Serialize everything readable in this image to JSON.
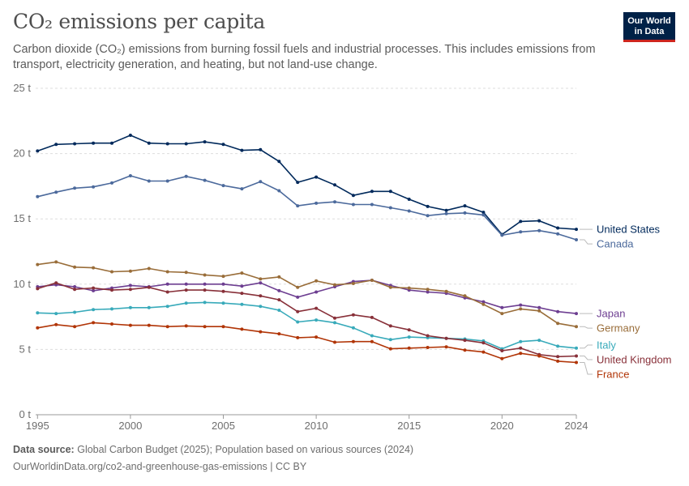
{
  "header": {
    "title": "CO₂ emissions per capita",
    "subtitle": "Carbon dioxide (CO₂) emissions from burning fossil fuels and industrial processes. This includes emissions from transport, electricity generation, and heating, but not land-use change.",
    "logo_line1": "Our World",
    "logo_line2": "in Data"
  },
  "footer": {
    "source_label": "Data source:",
    "source_text": "Global Carbon Budget (2025); Population based on various sources (2024)",
    "link_text": "OurWorldinData.org/co2-and-greenhouse-gas-emissions | CC BY"
  },
  "colors": {
    "gridline": "#dddddd",
    "axis": "#999999",
    "leader": "#bbbbbb"
  },
  "chart_data": {
    "type": "line",
    "title": "CO₂ emissions per capita",
    "xlim": [
      1994.9,
      2024
    ],
    "ylim": [
      0,
      25
    ],
    "grid": true,
    "legend": "right-end labels",
    "y_ticks": [
      {
        "value": 0,
        "label": "0 t"
      },
      {
        "value": 5,
        "label": "5 t"
      },
      {
        "value": 10,
        "label": "10 t"
      },
      {
        "value": 15,
        "label": "15 t"
      },
      {
        "value": 20,
        "label": "20 t"
      },
      {
        "value": 25,
        "label": "25 t"
      }
    ],
    "x_ticks": [
      {
        "value": 1995,
        "label": "1995"
      },
      {
        "value": 2000,
        "label": "2000"
      },
      {
        "value": 2005,
        "label": "2005"
      },
      {
        "value": 2010,
        "label": "2010"
      },
      {
        "value": 2015,
        "label": "2015"
      },
      {
        "value": 2020,
        "label": "2020"
      },
      {
        "value": 2024,
        "label": "2024"
      }
    ],
    "x": [
      1995,
      1996,
      1997,
      1998,
      1999,
      2000,
      2001,
      2002,
      2003,
      2004,
      2005,
      2006,
      2007,
      2008,
      2009,
      2010,
      2011,
      2012,
      2013,
      2014,
      2015,
      2016,
      2017,
      2018,
      2019,
      2020,
      2021,
      2022,
      2023,
      2024
    ],
    "series": [
      {
        "name": "United States",
        "color": "#00295b",
        "values": [
          20.2,
          20.7,
          20.75,
          20.8,
          20.8,
          21.4,
          20.8,
          20.75,
          20.75,
          20.9,
          20.7,
          20.25,
          20.3,
          19.4,
          17.8,
          18.2,
          17.6,
          16.8,
          17.1,
          17.1,
          16.5,
          15.95,
          15.65,
          16.0,
          15.5,
          13.8,
          14.8,
          14.85,
          14.3,
          14.2
        ]
      },
      {
        "name": "Canada",
        "color": "#4c6a9c",
        "values": [
          16.7,
          17.05,
          17.35,
          17.45,
          17.75,
          18.3,
          17.9,
          17.9,
          18.25,
          17.95,
          17.55,
          17.3,
          17.85,
          17.15,
          16.0,
          16.2,
          16.3,
          16.1,
          16.1,
          15.85,
          15.6,
          15.25,
          15.4,
          15.45,
          15.3,
          13.75,
          14.0,
          14.1,
          13.85,
          13.4
        ]
      },
      {
        "name": "Japan",
        "color": "#6d3e91",
        "values": [
          9.8,
          9.95,
          9.8,
          9.5,
          9.7,
          9.9,
          9.8,
          10.0,
          10.0,
          10.0,
          10.0,
          9.85,
          10.1,
          9.5,
          9.0,
          9.4,
          9.8,
          10.2,
          10.3,
          9.9,
          9.55,
          9.4,
          9.3,
          8.95,
          8.65,
          8.2,
          8.4,
          8.2,
          7.9,
          7.75
        ]
      },
      {
        "name": "Germany",
        "color": "#996d39",
        "values": [
          11.5,
          11.7,
          11.3,
          11.25,
          10.95,
          11.0,
          11.2,
          10.95,
          10.9,
          10.7,
          10.6,
          10.85,
          10.4,
          10.55,
          9.75,
          10.25,
          9.95,
          10.05,
          10.3,
          9.75,
          9.7,
          9.6,
          9.45,
          9.1,
          8.45,
          7.75,
          8.1,
          7.95,
          7.0,
          6.75
        ]
      },
      {
        "name": "Italy",
        "color": "#38aaba",
        "values": [
          7.8,
          7.75,
          7.85,
          8.05,
          8.1,
          8.2,
          8.2,
          8.3,
          8.55,
          8.6,
          8.55,
          8.45,
          8.3,
          8.0,
          7.1,
          7.25,
          7.05,
          6.65,
          6.05,
          5.75,
          5.95,
          5.9,
          5.85,
          5.8,
          5.65,
          5.05,
          5.6,
          5.7,
          5.25,
          5.1
        ]
      },
      {
        "name": "United Kingdom",
        "color": "#883039",
        "values": [
          9.65,
          10.1,
          9.6,
          9.7,
          9.55,
          9.6,
          9.75,
          9.4,
          9.55,
          9.55,
          9.45,
          9.3,
          9.1,
          8.8,
          7.9,
          8.15,
          7.4,
          7.65,
          7.45,
          6.8,
          6.5,
          6.05,
          5.85,
          5.7,
          5.5,
          4.9,
          5.1,
          4.6,
          4.45,
          4.5
        ]
      },
      {
        "name": "France",
        "color": "#b13507",
        "values": [
          6.65,
          6.9,
          6.75,
          7.05,
          6.95,
          6.85,
          6.85,
          6.75,
          6.8,
          6.75,
          6.75,
          6.55,
          6.35,
          6.2,
          5.9,
          5.95,
          5.55,
          5.6,
          5.6,
          5.05,
          5.1,
          5.15,
          5.2,
          4.95,
          4.8,
          4.3,
          4.7,
          4.5,
          4.1,
          4.0
        ]
      }
    ]
  }
}
